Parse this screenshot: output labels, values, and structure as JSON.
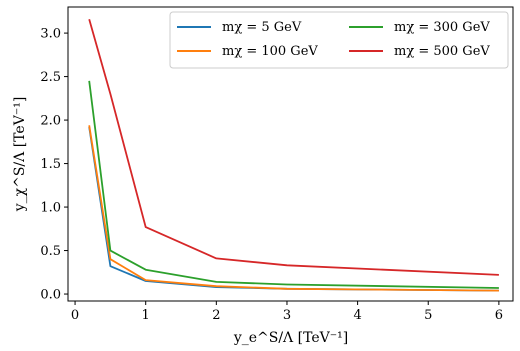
{
  "chart_data": {
    "type": "line",
    "x": [
      0.2,
      0.5,
      1,
      2,
      3,
      6
    ],
    "series": [
      {
        "name": "m_χ = 5 GeV",
        "legend_label": "mχ = 5 GeV",
        "color": "#1f77b4",
        "values": [
          1.92,
          0.32,
          0.15,
          0.08,
          0.06,
          0.04
        ]
      },
      {
        "name": "m_χ = 100 GeV",
        "legend_label": "mχ = 100 GeV",
        "color": "#ff7f0e",
        "values": [
          1.94,
          0.4,
          0.16,
          0.09,
          0.06,
          0.04
        ]
      },
      {
        "name": "m_χ = 300 GeV",
        "legend_label": "mχ = 300 GeV",
        "color": "#2ca02c",
        "values": [
          2.45,
          0.5,
          0.28,
          0.14,
          0.11,
          0.07
        ]
      },
      {
        "name": "m_χ = 500 GeV",
        "legend_label": "mχ = 500 GeV",
        "color": "#d62728",
        "values": [
          3.16,
          2.3,
          0.77,
          0.41,
          0.33,
          0.22
        ]
      }
    ],
    "xlabel": "y_e^S/Λ [TeV⁻¹]",
    "ylabel": "y_χ^S/Λ [TeV⁻¹]",
    "xlim": [
      -0.1,
      6.2
    ],
    "ylim": [
      -0.08,
      3.3
    ],
    "xticks": [
      0,
      1,
      2,
      3,
      4,
      5,
      6
    ],
    "yticks": [
      0.0,
      0.5,
      1.0,
      1.5,
      2.0,
      2.5,
      3.0
    ],
    "xtick_labels": [
      "0",
      "1",
      "2",
      "3",
      "4",
      "5",
      "6"
    ],
    "ytick_labels": [
      "0.0",
      "0.5",
      "1.0",
      "1.5",
      "2.0",
      "2.5",
      "3.0"
    ],
    "legend_position": "top-right",
    "grid": false
  }
}
